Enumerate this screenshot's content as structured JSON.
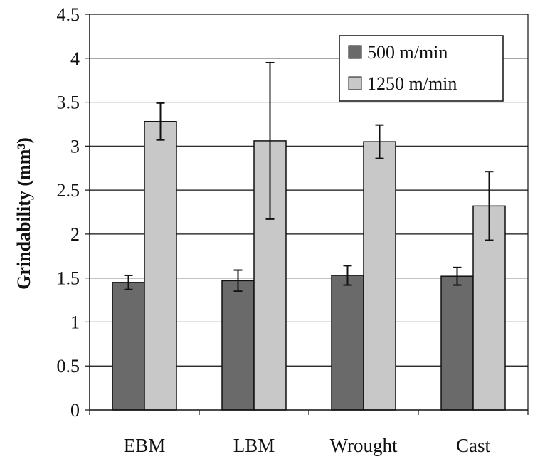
{
  "chart_data": {
    "type": "bar",
    "ylabel": "Grindability (mm³)",
    "xlabel": "",
    "categories": [
      "EBM",
      "LBM",
      "Wrought",
      "Cast"
    ],
    "ylim": [
      0,
      4.5
    ],
    "yticks": [
      0,
      0.5,
      1,
      1.5,
      2,
      2.5,
      3,
      3.5,
      4,
      4.5
    ],
    "ytick_labels": [
      "0",
      "0.5",
      "1",
      "1.5",
      "2",
      "2.5",
      "3",
      "3.5",
      "4",
      "4.5"
    ],
    "grid": true,
    "legend_position": "top-right",
    "series": [
      {
        "name": "500 m/min",
        "color": "#6a6a6a",
        "values": [
          1.45,
          1.47,
          1.53,
          1.52
        ],
        "error": [
          0.08,
          0.12,
          0.11,
          0.1
        ]
      },
      {
        "name": "1250 m/min",
        "color": "#c8c8c8",
        "values": [
          3.28,
          3.06,
          3.05,
          2.32
        ],
        "error": [
          0.21,
          0.89,
          0.19,
          0.39
        ]
      }
    ]
  }
}
